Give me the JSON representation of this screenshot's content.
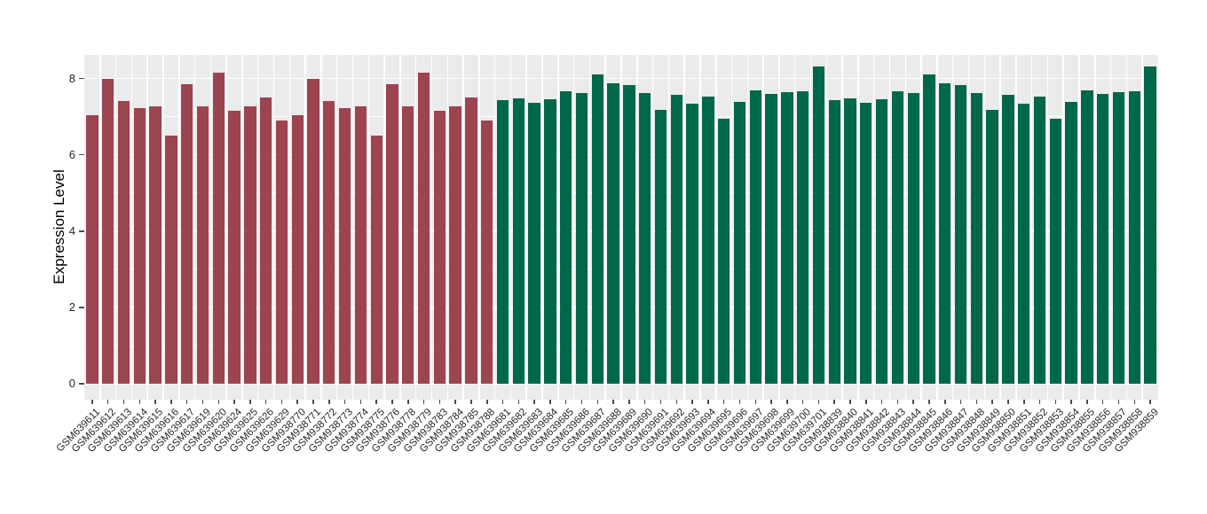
{
  "chart_data": {
    "type": "bar",
    "title": "",
    "xlabel": "",
    "ylabel": "Expression Level",
    "yticks": [
      0,
      2,
      4,
      6,
      8
    ],
    "ylim": [
      -0.4,
      8.62
    ],
    "grid": true,
    "legend_position": "none",
    "panel_background": "#EBEBEB",
    "gridline_color": "#FFFFFF",
    "tick_color": "#4D4D4D",
    "axis_text_color": "#262626",
    "categories": [
      "GSM639611",
      "GSM639612",
      "GSM639613",
      "GSM639614",
      "GSM639615",
      "GSM639616",
      "GSM639617",
      "GSM639619",
      "GSM639620",
      "GSM639624",
      "GSM639625",
      "GSM639626",
      "GSM639629",
      "GSM938770",
      "GSM938771",
      "GSM938772",
      "GSM938773",
      "GSM938774",
      "GSM938775",
      "GSM938776",
      "GSM938778",
      "GSM938779",
      "GSM938783",
      "GSM938784",
      "GSM938785",
      "GSM938788",
      "GSM639681",
      "GSM639682",
      "GSM639683",
      "GSM639684",
      "GSM639685",
      "GSM639686",
      "GSM639687",
      "GSM639688",
      "GSM639689",
      "GSM639690",
      "GSM639691",
      "GSM639692",
      "GSM639693",
      "GSM639694",
      "GSM639695",
      "GSM639696",
      "GSM639697",
      "GSM639698",
      "GSM639699",
      "GSM639700",
      "GSM639701",
      "GSM938839",
      "GSM938840",
      "GSM938841",
      "GSM938842",
      "GSM938843",
      "GSM938844",
      "GSM938845",
      "GSM938846",
      "GSM938847",
      "GSM938848",
      "GSM938849",
      "GSM938850",
      "GSM938851",
      "GSM938852",
      "GSM938853",
      "GSM938854",
      "GSM938855",
      "GSM938856",
      "GSM938857",
      "GSM938858",
      "GSM938859"
    ],
    "values": [
      7.03,
      8.0,
      7.42,
      7.22,
      7.26,
      6.5,
      7.84,
      7.26,
      8.15,
      7.15,
      7.26,
      7.51,
      6.89,
      7.03,
      8.0,
      7.42,
      7.22,
      7.26,
      6.5,
      7.84,
      7.26,
      8.15,
      7.15,
      7.26,
      7.51,
      6.89,
      7.43,
      7.48,
      7.36,
      7.46,
      7.67,
      7.61,
      8.11,
      7.88,
      7.82,
      7.62,
      7.18,
      7.57,
      7.33,
      7.52,
      6.95,
      7.38,
      7.68,
      7.6,
      7.64,
      7.67,
      8.32,
      7.43,
      7.48,
      7.36,
      7.46,
      7.67,
      7.61,
      8.11,
      7.88,
      7.82,
      7.62,
      7.18,
      7.57,
      7.33,
      7.52,
      6.95,
      7.38,
      7.68,
      7.6,
      7.64,
      7.67,
      8.32
    ],
    "groups": [
      {
        "color": "#9C4450",
        "count": 26
      },
      {
        "color": "#00684A",
        "count": 42
      }
    ]
  }
}
